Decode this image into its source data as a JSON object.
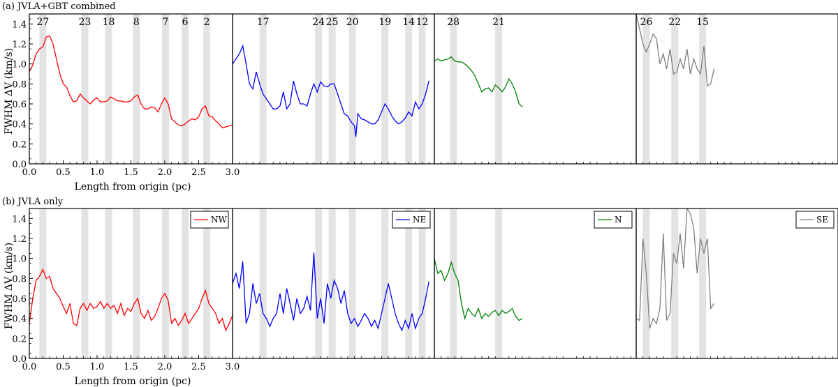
{
  "chart_data": [
    {
      "type": "line",
      "panel_label": "(a) JVLA+GBT combined",
      "ylabel": "FWHM ΔV (km/s)",
      "xlabel": "Length from origin (pc)",
      "xlim": [
        0.0,
        3.0
      ],
      "ylim": [
        0.0,
        1.5
      ],
      "yticks": [
        "0.0",
        "0.2",
        "0.4",
        "0.6",
        "0.8",
        "1.0",
        "1.2",
        "1.4"
      ],
      "xticks": [
        "0.0",
        "0.5",
        "1.0",
        "1.5",
        "2.0",
        "2.5",
        "3.0"
      ],
      "subpanels": [
        {
          "name": "NW",
          "color": "#ff0000",
          "markers": [
            {
              "label": "27",
              "x": 0.2
            },
            {
              "label": "23",
              "x": 0.82
            },
            {
              "label": "18",
              "x": 1.17
            },
            {
              "label": "8",
              "x": 1.58
            },
            {
              "label": "7",
              "x": 2.01
            },
            {
              "label": "6",
              "x": 2.3
            },
            {
              "label": "2",
              "x": 2.62
            }
          ],
          "x": [
            0.0,
            0.05,
            0.1,
            0.15,
            0.2,
            0.25,
            0.3,
            0.35,
            0.4,
            0.45,
            0.5,
            0.55,
            0.6,
            0.65,
            0.7,
            0.75,
            0.8,
            0.85,
            0.9,
            0.95,
            1.0,
            1.05,
            1.1,
            1.15,
            1.2,
            1.25,
            1.3,
            1.35,
            1.4,
            1.45,
            1.5,
            1.55,
            1.6,
            1.65,
            1.7,
            1.75,
            1.8,
            1.85,
            1.9,
            1.95,
            2.0,
            2.05,
            2.1,
            2.15,
            2.2,
            2.25,
            2.3,
            2.35,
            2.4,
            2.45,
            2.5,
            2.55,
            2.6,
            2.65,
            2.7,
            2.75,
            2.8,
            2.85,
            2.9,
            2.95,
            3.0
          ],
          "y": [
            0.92,
            0.99,
            1.1,
            1.15,
            1.17,
            1.27,
            1.28,
            1.2,
            1.05,
            0.9,
            0.8,
            0.77,
            0.68,
            0.62,
            0.63,
            0.7,
            0.66,
            0.63,
            0.6,
            0.64,
            0.66,
            0.62,
            0.62,
            0.63,
            0.67,
            0.65,
            0.63,
            0.63,
            0.62,
            0.62,
            0.63,
            0.67,
            0.69,
            0.6,
            0.55,
            0.55,
            0.57,
            0.56,
            0.52,
            0.6,
            0.66,
            0.6,
            0.45,
            0.42,
            0.39,
            0.38,
            0.4,
            0.43,
            0.45,
            0.44,
            0.47,
            0.55,
            0.58,
            0.48,
            0.47,
            0.43,
            0.4,
            0.36,
            0.37,
            0.38,
            0.39
          ]
        },
        {
          "name": "NE",
          "color": "#0000ff",
          "markers": [
            {
              "label": "17",
              "x": 0.45
            },
            {
              "label": "24",
              "x": 1.27
            },
            {
              "label": "25",
              "x": 1.47
            },
            {
              "label": "20",
              "x": 1.77
            },
            {
              "label": "19",
              "x": 2.25
            },
            {
              "label": "14",
              "x": 2.6
            },
            {
              "label": "12",
              "x": 2.8
            }
          ],
          "x": [
            0.0,
            0.05,
            0.1,
            0.15,
            0.2,
            0.25,
            0.3,
            0.35,
            0.4,
            0.45,
            0.5,
            0.55,
            0.6,
            0.65,
            0.7,
            0.75,
            0.8,
            0.85,
            0.9,
            0.95,
            1.0,
            1.05,
            1.1,
            1.15,
            1.2,
            1.25,
            1.3,
            1.35,
            1.4,
            1.45,
            1.5,
            1.55,
            1.6,
            1.65,
            1.7,
            1.75,
            1.8,
            1.82,
            1.85,
            1.9,
            1.95,
            2.0,
            2.05,
            2.1,
            2.15,
            2.2,
            2.25,
            2.3,
            2.35,
            2.4,
            2.45,
            2.5,
            2.55,
            2.6,
            2.65,
            2.7,
            2.75,
            2.8,
            2.85,
            2.9
          ],
          "y": [
            1.0,
            1.05,
            1.1,
            1.18,
            1.0,
            0.8,
            0.75,
            0.92,
            0.8,
            0.7,
            0.65,
            0.6,
            0.55,
            0.55,
            0.58,
            0.72,
            0.55,
            0.6,
            0.83,
            0.7,
            0.6,
            0.6,
            0.58,
            0.7,
            0.8,
            0.72,
            0.82,
            0.78,
            0.77,
            0.8,
            0.8,
            0.7,
            0.6,
            0.5,
            0.48,
            0.42,
            0.38,
            0.27,
            0.5,
            0.45,
            0.44,
            0.42,
            0.4,
            0.4,
            0.44,
            0.52,
            0.6,
            0.55,
            0.48,
            0.43,
            0.4,
            0.42,
            0.46,
            0.52,
            0.48,
            0.62,
            0.55,
            0.6,
            0.7,
            0.83
          ]
        },
        {
          "name": "N",
          "color": "#008000",
          "markers": [
            {
              "label": "28",
              "x": 0.28
            },
            {
              "label": "21",
              "x": 0.95
            }
          ],
          "x": [
            0.0,
            0.05,
            0.1,
            0.15,
            0.2,
            0.25,
            0.3,
            0.35,
            0.4,
            0.45,
            0.5,
            0.55,
            0.6,
            0.65,
            0.7,
            0.75,
            0.8,
            0.85,
            0.9,
            0.95,
            1.0,
            1.05,
            1.1,
            1.15,
            1.2,
            1.25,
            1.3
          ],
          "y": [
            1.03,
            1.05,
            1.03,
            1.04,
            1.05,
            1.07,
            1.03,
            1.02,
            1.02,
            1.0,
            0.97,
            0.93,
            0.88,
            0.8,
            0.72,
            0.75,
            0.76,
            0.72,
            0.79,
            0.76,
            0.72,
            0.77,
            0.85,
            0.8,
            0.72,
            0.6,
            0.57
          ]
        },
        {
          "name": "SE",
          "color": "#808080",
          "markers": [
            {
              "label": "26",
              "x": 0.15
            },
            {
              "label": "22",
              "x": 0.57
            },
            {
              "label": "15",
              "x": 0.98
            }
          ],
          "x": [
            0.0,
            0.05,
            0.1,
            0.15,
            0.2,
            0.25,
            0.3,
            0.35,
            0.4,
            0.45,
            0.5,
            0.55,
            0.6,
            0.65,
            0.7,
            0.75,
            0.8,
            0.85,
            0.9,
            0.95,
            1.0,
            1.05,
            1.1,
            1.15
          ],
          "y": [
            1.5,
            1.35,
            1.2,
            1.12,
            1.2,
            1.3,
            1.25,
            1.0,
            1.1,
            0.95,
            1.15,
            0.9,
            0.92,
            1.05,
            0.95,
            1.15,
            0.9,
            1.05,
            0.95,
            0.9,
            1.18,
            0.78,
            0.8,
            0.95
          ]
        }
      ]
    },
    {
      "type": "line",
      "panel_label": "(b) JVLA only",
      "ylabel": "FWHM ΔV (km/s)",
      "xlabel": "Length from origin (pc)",
      "xlim": [
        0.0,
        3.0
      ],
      "ylim": [
        0.0,
        1.5
      ],
      "yticks": [
        "0.0",
        "0.2",
        "0.4",
        "0.6",
        "0.8",
        "1.0",
        "1.2",
        "1.4"
      ],
      "xticks": [
        "0.0",
        "0.5",
        "1.0",
        "1.5",
        "2.0",
        "2.5",
        "3.0"
      ],
      "legend_location": "top-right",
      "subpanels": [
        {
          "name": "NW",
          "color": "#ff0000",
          "x": [
            0.0,
            0.05,
            0.1,
            0.15,
            0.2,
            0.25,
            0.3,
            0.35,
            0.4,
            0.45,
            0.5,
            0.55,
            0.6,
            0.65,
            0.7,
            0.75,
            0.8,
            0.85,
            0.9,
            0.95,
            1.0,
            1.05,
            1.1,
            1.15,
            1.2,
            1.25,
            1.3,
            1.35,
            1.4,
            1.45,
            1.5,
            1.55,
            1.6,
            1.65,
            1.7,
            1.75,
            1.8,
            1.85,
            1.9,
            1.95,
            2.0,
            2.05,
            2.1,
            2.15,
            2.2,
            2.25,
            2.3,
            2.35,
            2.4,
            2.45,
            2.5,
            2.55,
            2.6,
            2.65,
            2.7,
            2.75,
            2.8,
            2.85,
            2.9,
            2.95,
            3.0
          ],
          "y": [
            0.35,
            0.6,
            0.78,
            0.82,
            0.89,
            0.8,
            0.82,
            0.7,
            0.65,
            0.6,
            0.52,
            0.45,
            0.55,
            0.35,
            0.33,
            0.5,
            0.55,
            0.48,
            0.55,
            0.5,
            0.52,
            0.57,
            0.5,
            0.55,
            0.5,
            0.53,
            0.45,
            0.55,
            0.43,
            0.5,
            0.47,
            0.55,
            0.6,
            0.45,
            0.4,
            0.48,
            0.38,
            0.42,
            0.5,
            0.6,
            0.65,
            0.58,
            0.35,
            0.4,
            0.33,
            0.38,
            0.45,
            0.35,
            0.4,
            0.45,
            0.5,
            0.6,
            0.68,
            0.55,
            0.5,
            0.45,
            0.35,
            0.4,
            0.28,
            0.35,
            0.43
          ]
        },
        {
          "name": "NE",
          "color": "#0000ff",
          "x": [
            0.0,
            0.05,
            0.1,
            0.15,
            0.2,
            0.25,
            0.3,
            0.35,
            0.4,
            0.45,
            0.5,
            0.55,
            0.6,
            0.65,
            0.7,
            0.75,
            0.8,
            0.85,
            0.9,
            0.95,
            1.0,
            1.05,
            1.1,
            1.15,
            1.2,
            1.25,
            1.3,
            1.35,
            1.4,
            1.45,
            1.5,
            1.55,
            1.6,
            1.65,
            1.7,
            1.75,
            1.8,
            1.85,
            1.9,
            1.95,
            2.0,
            2.05,
            2.1,
            2.15,
            2.2,
            2.25,
            2.3,
            2.35,
            2.4,
            2.45,
            2.5,
            2.55,
            2.6,
            2.65,
            2.7,
            2.75,
            2.8,
            2.85,
            2.9
          ],
          "y": [
            0.75,
            0.85,
            0.7,
            0.97,
            0.35,
            0.45,
            0.75,
            0.55,
            0.65,
            0.45,
            0.4,
            0.32,
            0.4,
            0.45,
            0.65,
            0.45,
            0.7,
            0.55,
            0.38,
            0.6,
            0.45,
            0.5,
            0.62,
            0.48,
            1.06,
            0.4,
            0.6,
            0.35,
            0.75,
            0.6,
            0.78,
            0.7,
            0.55,
            0.68,
            0.45,
            0.35,
            0.4,
            0.32,
            0.38,
            0.45,
            0.4,
            0.32,
            0.38,
            0.3,
            0.45,
            0.6,
            0.75,
            0.6,
            0.45,
            0.35,
            0.28,
            0.38,
            0.3,
            0.45,
            0.3,
            0.4,
            0.45,
            0.6,
            0.77
          ]
        },
        {
          "name": "N",
          "color": "#008000",
          "x": [
            0.0,
            0.05,
            0.1,
            0.15,
            0.2,
            0.25,
            0.3,
            0.35,
            0.4,
            0.45,
            0.5,
            0.55,
            0.6,
            0.65,
            0.7,
            0.75,
            0.8,
            0.85,
            0.9,
            0.95,
            1.0,
            1.05,
            1.1,
            1.15,
            1.2,
            1.25,
            1.3
          ],
          "y": [
            1.0,
            0.85,
            0.88,
            0.78,
            0.85,
            0.96,
            0.85,
            0.78,
            0.55,
            0.4,
            0.5,
            0.45,
            0.42,
            0.5,
            0.4,
            0.45,
            0.42,
            0.46,
            0.48,
            0.43,
            0.48,
            0.45,
            0.47,
            0.5,
            0.42,
            0.38,
            0.4
          ]
        },
        {
          "name": "SE",
          "color": "#808080",
          "x": [
            0.0,
            0.05,
            0.1,
            0.15,
            0.2,
            0.25,
            0.3,
            0.35,
            0.4,
            0.45,
            0.5,
            0.55,
            0.6,
            0.65,
            0.7,
            0.75,
            0.8,
            0.85,
            0.9,
            0.95,
            1.0,
            1.05,
            1.1,
            1.15
          ],
          "y": [
            0.4,
            0.38,
            1.2,
            0.85,
            0.3,
            0.4,
            0.35,
            0.5,
            1.25,
            0.38,
            0.45,
            1.05,
            0.95,
            1.25,
            0.9,
            1.5,
            1.45,
            1.3,
            0.85,
            1.2,
            1.05,
            1.2,
            0.5,
            0.55
          ]
        }
      ]
    }
  ]
}
